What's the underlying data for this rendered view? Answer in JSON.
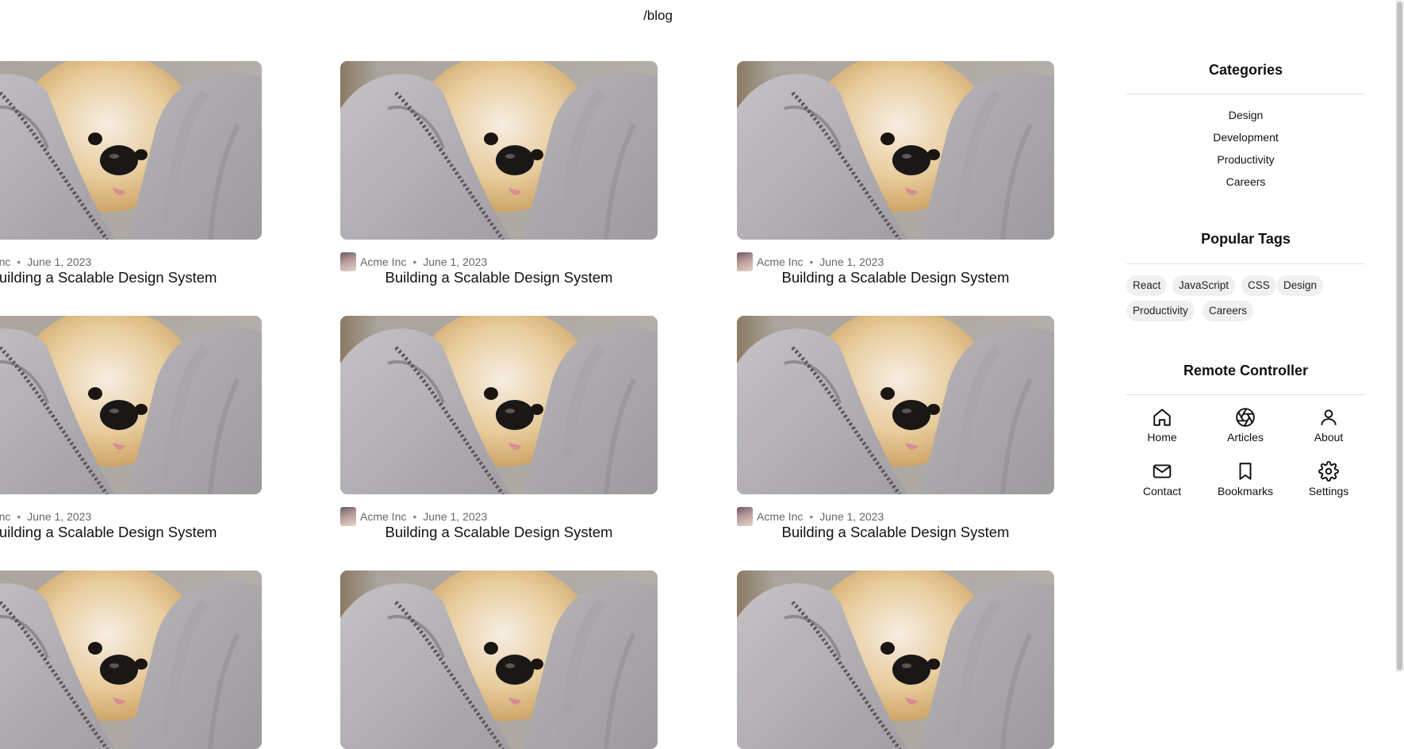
{
  "route": "/blog",
  "posts": [
    {
      "author": "Acme Inc",
      "date": "June 1, 2023",
      "title": "Building a Scalable Design System"
    },
    {
      "author": "Acme Inc",
      "date": "June 1, 2023",
      "title": "Building a Scalable Design System"
    },
    {
      "author": "Acme Inc",
      "date": "June 1, 2023",
      "title": "Building a Scalable Design System"
    },
    {
      "author": "Acme Inc",
      "date": "June 1, 2023",
      "title": "Building a Scalable Design System"
    },
    {
      "author": "Acme Inc",
      "date": "June 1, 2023",
      "title": "Building a Scalable Design System"
    },
    {
      "author": "Acme Inc",
      "date": "June 1, 2023",
      "title": "Building a Scalable Design System"
    },
    {
      "author": "",
      "date": "",
      "title": ""
    },
    {
      "author": "",
      "date": "",
      "title": ""
    },
    {
      "author": "",
      "date": "",
      "title": ""
    }
  ],
  "meta_separator": "•",
  "sidebar": {
    "categories_heading": "Categories",
    "categories": [
      "Design",
      "Development",
      "Productivity",
      "Careers"
    ],
    "tags_heading": "Popular Tags",
    "tags": [
      "React",
      "JavaScript",
      "CSS",
      "Design",
      "Productivity",
      "Careers"
    ],
    "remote_heading": "Remote Controller",
    "remote": [
      {
        "label": "Home",
        "icon": "home-icon"
      },
      {
        "label": "Articles",
        "icon": "aperture-icon"
      },
      {
        "label": "About",
        "icon": "user-icon"
      },
      {
        "label": "Contact",
        "icon": "mail-icon"
      },
      {
        "label": "Bookmarks",
        "icon": "bookmark-icon"
      },
      {
        "label": "Settings",
        "icon": "gear-icon"
      }
    ]
  },
  "colors": {
    "tag_bg": "#f0f0f0",
    "muted_text": "#666666",
    "rule": "#e2e2e2"
  }
}
